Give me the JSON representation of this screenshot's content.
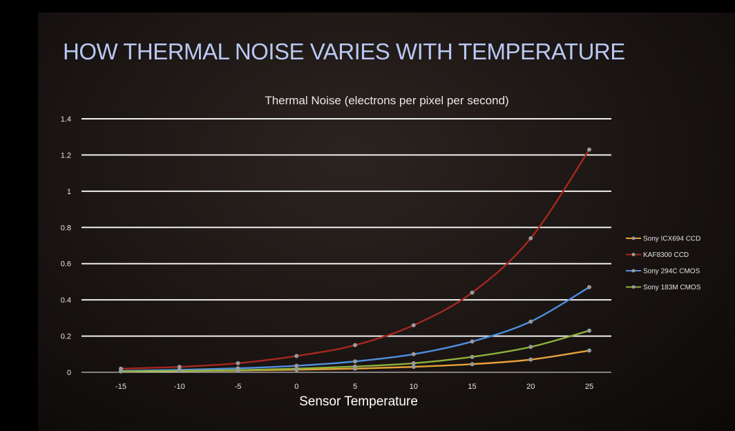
{
  "slide": {
    "title": "HOW THERMAL NOISE VARIES WITH TEMPERATURE"
  },
  "chart_data": {
    "type": "line",
    "title": "Thermal Noise (electrons per pixel per second)",
    "xlabel": "Sensor Temperature",
    "ylabel": "",
    "x": [
      -15,
      -10,
      -5,
      0,
      5,
      10,
      15,
      20,
      25
    ],
    "x_tick_labels": [
      "-15",
      "-10",
      "-5",
      "0",
      "5",
      "10",
      "15",
      "20",
      "25"
    ],
    "ylim": [
      0,
      1.4
    ],
    "y_ticks": [
      0,
      0.2,
      0.4,
      0.6,
      0.8,
      1,
      1.2,
      1.4
    ],
    "y_tick_labels": [
      "0",
      "0.2",
      "0.4",
      "0.6",
      "0.8",
      "1",
      "1.2",
      "1.4"
    ],
    "grid": true,
    "legend_position": "right",
    "series": [
      {
        "name": "Sony ICX694 CCD",
        "color": "#e8a13a",
        "values": [
          0.005,
          0.007,
          0.01,
          0.014,
          0.02,
          0.03,
          0.045,
          0.07,
          0.12
        ]
      },
      {
        "name": "KAF8300 CCD",
        "color": "#a82720",
        "values": [
          0.02,
          0.03,
          0.05,
          0.09,
          0.15,
          0.26,
          0.44,
          0.74,
          1.23
        ]
      },
      {
        "name": "Sony 294C CMOS",
        "color": "#4f8fe0",
        "values": [
          0.008,
          0.014,
          0.022,
          0.036,
          0.06,
          0.1,
          0.17,
          0.28,
          0.47
        ]
      },
      {
        "name": "Sony 183M CMOS",
        "color": "#8fb23a",
        "values": [
          0.005,
          0.008,
          0.012,
          0.02,
          0.032,
          0.05,
          0.085,
          0.14,
          0.23
        ]
      }
    ]
  }
}
